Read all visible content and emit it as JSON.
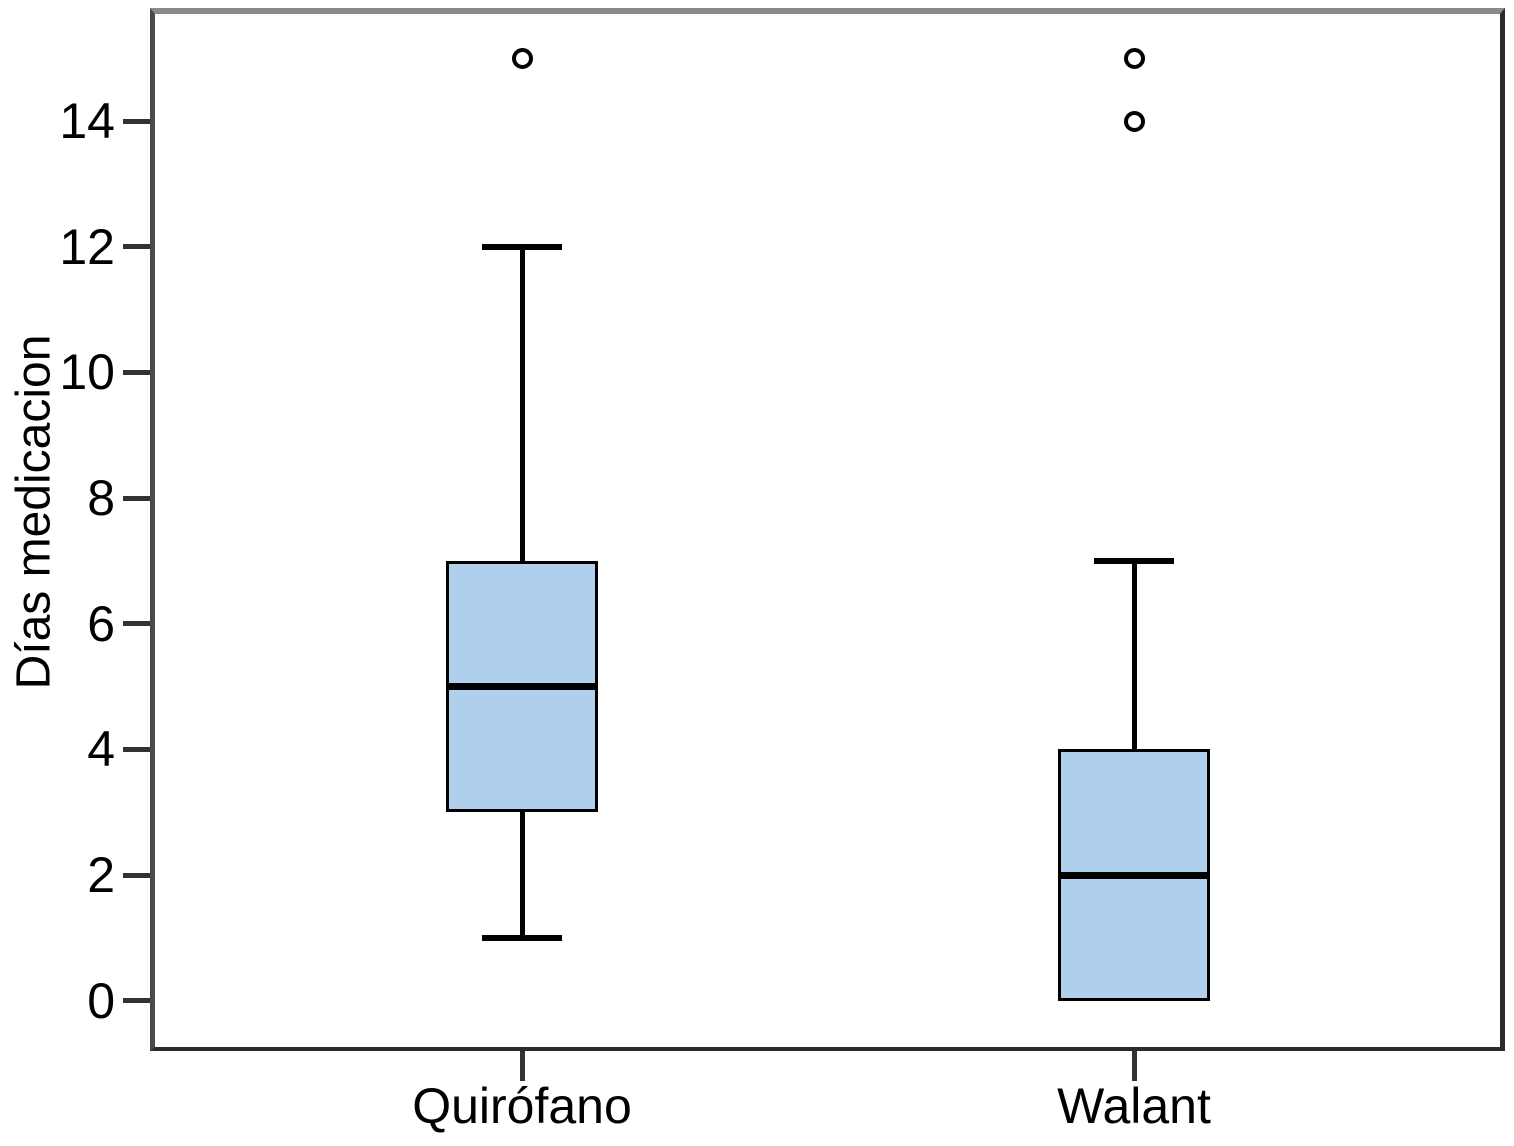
{
  "chart_data": {
    "type": "boxplot",
    "title": "",
    "xlabel": "",
    "ylabel": "Días medicacion",
    "categories": [
      "Quirófano",
      "Walant"
    ],
    "y_ticks": [
      0,
      2,
      4,
      6,
      8,
      10,
      12,
      14
    ],
    "ylim": [
      -0.8,
      15.8
    ],
    "grid": false,
    "legend": "none",
    "series": [
      {
        "category": "Quirófano",
        "whisker_low": 1,
        "q1": 3,
        "median": 5,
        "q3": 7,
        "whisker_high": 12,
        "outliers": [
          15
        ]
      },
      {
        "category": "Walant",
        "whisker_low": 0,
        "q1": 0,
        "median": 2,
        "q3": 4,
        "whisker_high": 7,
        "outliers": [
          14,
          15
        ]
      }
    ],
    "colors": {
      "box_fill": "#aed0ec",
      "box_border": "#000000",
      "median": "#000000",
      "whisker": "#000000",
      "outlier_stroke": "#000000",
      "axis_tick": "#333333",
      "text": "#000000",
      "frame_top": "#8a8a8a",
      "frame_side": "#2b2b2b",
      "background": "#ffffff"
    }
  }
}
